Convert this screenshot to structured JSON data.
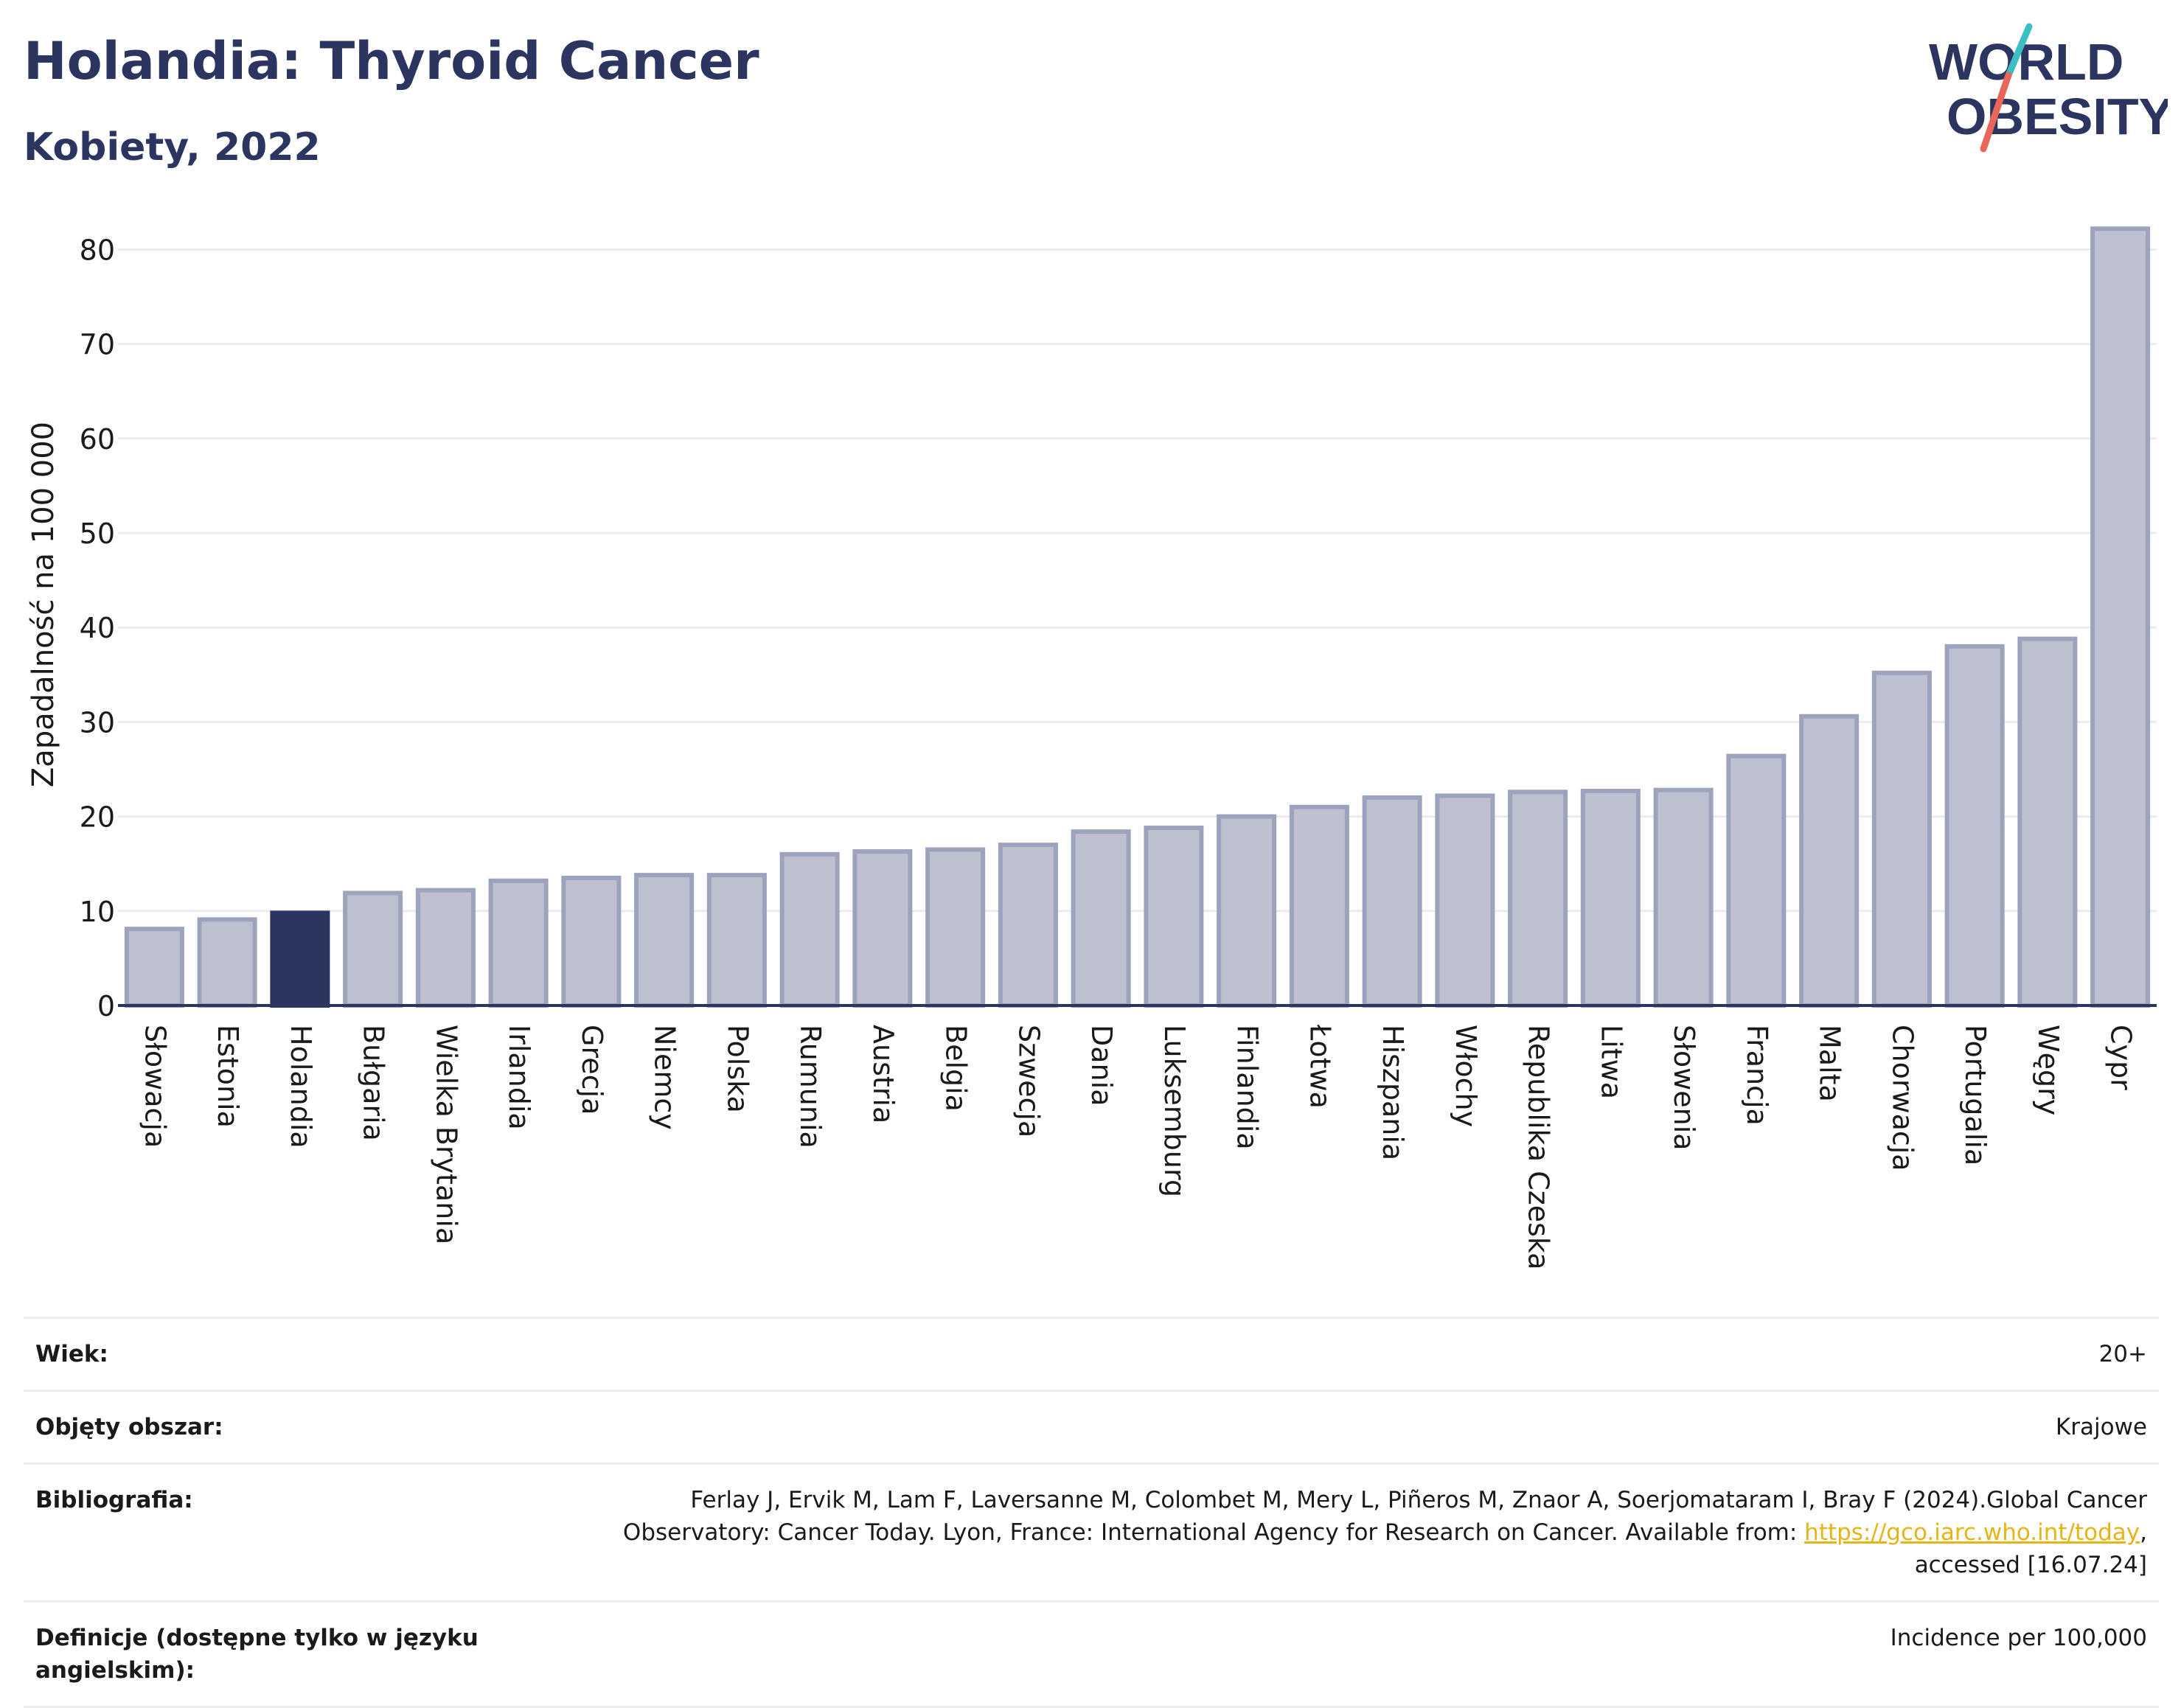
{
  "header": {
    "title": "Holandia: Thyroid Cancer",
    "subtitle": "Kobiety, 2022"
  },
  "logo": {
    "line1": "WORLD",
    "line2": "OBESITY",
    "colors": {
      "text": "#2b3560",
      "slash_top": "#3bbfc4",
      "slash_bottom": "#e8665a"
    }
  },
  "colors": {
    "bar_fill": "#bcc0cf",
    "bar_stroke": "#9da3bd",
    "bar_highlight": "#2b3560",
    "grid": "#e9ebef",
    "axis": "#2b3560"
  },
  "chart_data": {
    "type": "bar",
    "title": "Holandia: Thyroid Cancer",
    "subtitle": "Kobiety, 2022",
    "xlabel": "",
    "ylabel": "Zapadalność na 100 000",
    "ylim": [
      0,
      83
    ],
    "yticks": [
      0,
      10,
      20,
      30,
      40,
      50,
      60,
      70,
      80
    ],
    "grid": true,
    "highlight": "Holandia",
    "categories": [
      "Słowacja",
      "Estonia",
      "Holandia",
      "Bułgaria",
      "Wielka Brytania",
      "Irlandia",
      "Grecja",
      "Niemcy",
      "Polska",
      "Rumunia",
      "Austria",
      "Belgia",
      "Szwecja",
      "Dania",
      "Luksemburg",
      "Finlandia",
      "Łotwa",
      "Hiszpania",
      "Włochy",
      "Republika Czeska",
      "Litwa",
      "Słowenia",
      "Francja",
      "Malta",
      "Chorwacja",
      "Portugalia",
      "Węgry",
      "Cypr"
    ],
    "values": [
      8.1,
      9.1,
      9.8,
      11.9,
      12.2,
      13.2,
      13.5,
      13.8,
      13.8,
      16.0,
      16.3,
      16.5,
      17.0,
      18.4,
      18.8,
      20.0,
      21.0,
      22.0,
      22.2,
      22.6,
      22.7,
      22.8,
      26.4,
      30.6,
      35.2,
      38.0,
      38.8,
      82.2
    ]
  },
  "meta": {
    "age_label": "Wiek:",
    "age_value": "20+",
    "area_label": "Objęty obszar:",
    "area_value": "Krajowe",
    "bib_label": "Bibliografia:",
    "bib_line1": "Ferlay J, Ervik M, Lam F, Laversanne M, Colombet M, Mery L, Piñeros M, Znaor A, Soerjomataram I, Bray F (2024).Global Cancer",
    "bib_line2_pre": "Observatory: Cancer Today. Lyon, France: International Agency for Research on Cancer. Available from: ",
    "bib_link": "https://gco.iarc.who.int/today",
    "bib_line2_post": ",",
    "bib_line3": "accessed [16.07.24]",
    "def_label": "Definicje (dostępne tylko w języku angielskim):",
    "def_value": "Incidence per 100,000"
  }
}
